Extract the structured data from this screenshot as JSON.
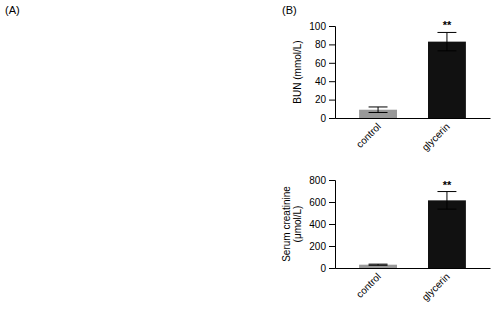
{
  "chart_data": [
    {
      "type": "bar",
      "categories": [
        "control",
        "glycerin"
      ],
      "values": [
        9,
        83
      ],
      "errors": [
        3,
        10
      ],
      "colors": [
        "#999999",
        "#111111"
      ],
      "ylabel": "BUN (mmol/L)",
      "ylim": [
        0,
        100
      ],
      "yticks": [
        0,
        20,
        40,
        60,
        80,
        100
      ],
      "annotations": [
        {
          "text": "(A)"
        },
        {
          "text": "(B)"
        },
        {
          "text": "**",
          "x": "glycerin"
        }
      ]
    },
    {
      "type": "bar",
      "categories": [
        "control",
        "glycerin"
      ],
      "values": [
        30,
        615
      ],
      "errors": [
        5,
        80
      ],
      "colors": [
        "#999999",
        "#111111"
      ],
      "ylabel": "Serum creatinine\n(μmol/L)",
      "ylim": [
        0,
        800
      ],
      "yticks": [
        0,
        200,
        400,
        600,
        800
      ],
      "annotations": [
        {
          "text": "**",
          "x": "glycerin"
        }
      ]
    }
  ]
}
